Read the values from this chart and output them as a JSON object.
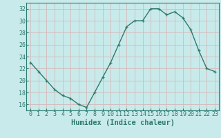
{
  "x": [
    0,
    1,
    2,
    3,
    4,
    5,
    6,
    7,
    8,
    9,
    10,
    11,
    12,
    13,
    14,
    15,
    16,
    17,
    18,
    19,
    20,
    21,
    22,
    23
  ],
  "y": [
    23,
    21.5,
    20,
    18.5,
    17.5,
    17,
    16,
    15.5,
    18,
    20.5,
    23,
    26,
    29,
    30,
    30,
    32,
    32,
    31,
    31.5,
    30.5,
    28.5,
    25,
    22,
    21.5
  ],
  "line_color": "#2d7a6e",
  "bg_color": "#c8eaea",
  "grid_color": "#b0d8d8",
  "axis_color": "#2d7a6e",
  "xlabel": "Humidex (Indice chaleur)",
  "ylim": [
    15,
    33
  ],
  "yticks": [
    16,
    18,
    20,
    22,
    24,
    26,
    28,
    30,
    32
  ],
  "xticks": [
    0,
    1,
    2,
    3,
    4,
    5,
    6,
    7,
    8,
    9,
    10,
    11,
    12,
    13,
    14,
    15,
    16,
    17,
    18,
    19,
    20,
    21,
    22,
    23
  ],
  "xlabel_fontsize": 7.5,
  "tick_fontsize": 6,
  "line_width": 1.0,
  "marker_size": 3
}
